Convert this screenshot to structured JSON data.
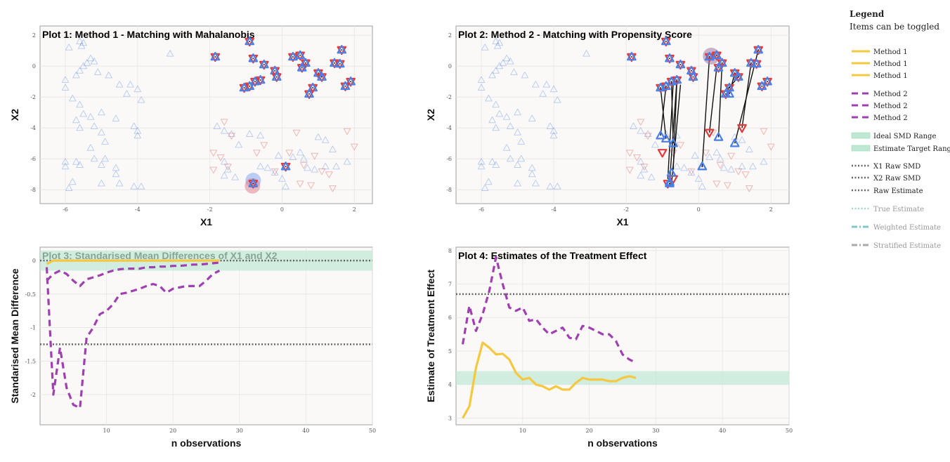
{
  "legend": {
    "title": "Legend",
    "subtitle": "Items can be toggled",
    "items": [
      {
        "label": "Method 1",
        "color": "#f5c842",
        "dash": "solid",
        "group": 0
      },
      {
        "label": "Method 1",
        "color": "#f5c842",
        "dash": "solid",
        "group": 0
      },
      {
        "label": "Method 1",
        "color": "#f5c842",
        "dash": "solid",
        "group": 0
      },
      {
        "label": "Method 2",
        "color": "#a040b0",
        "dash": "dashed",
        "group": 1
      },
      {
        "label": "Method 2",
        "color": "#a040b0",
        "dash": "dashed",
        "group": 1
      },
      {
        "label": "Method 2",
        "color": "#a040b0",
        "dash": "dashed",
        "group": 1
      },
      {
        "label": "Ideal SMD Range",
        "color": "#bfe8d4",
        "dash": "band",
        "group": 2
      },
      {
        "label": "Estimate Target Range",
        "color": "#bfe8d4",
        "dash": "band",
        "group": 2
      },
      {
        "label": "X1 Raw SMD",
        "color": "#666666",
        "dash": "dotted",
        "group": 3
      },
      {
        "label": "X2 Raw SMD",
        "color": "#666666",
        "dash": "dotted",
        "group": 3
      },
      {
        "label": "Raw Estimate",
        "color": "#666666",
        "dash": "dotted",
        "group": 3
      },
      {
        "label": "True Estimate",
        "color": "#9fd9cf",
        "dash": "dotted",
        "group": 4,
        "faded": true
      },
      {
        "label": "Weighted Estimate",
        "color": "#7ec8cc",
        "dash": "dashdot",
        "group": 5,
        "faded": true
      },
      {
        "label": "Stratified Estimate",
        "color": "#aaaaaa",
        "dash": "dashdot",
        "group": 6,
        "faded": true
      }
    ]
  },
  "chart_data": [
    {
      "id": "plot1",
      "type": "scatter",
      "title": "Plot 1: Method 1 - Matching with Mahalanobis",
      "xlabel": "X1",
      "ylabel": "X2",
      "xlim": [
        -6.7,
        2.5
      ],
      "ylim": [
        -8.9,
        2.6
      ],
      "xticks": [
        -6,
        -4,
        -2,
        0,
        2
      ],
      "yticks": [
        -8,
        -6,
        -4,
        -2,
        0,
        2
      ],
      "control_color": "#4a7fe8",
      "treated_color": "#e03a3a",
      "controls": [
        [
          -5.6,
          1.6
        ],
        [
          -5.5,
          1.5
        ],
        [
          -5.55,
          1.3
        ],
        [
          -5.3,
          0.5
        ],
        [
          -5.4,
          0.2
        ],
        [
          -5.5,
          0.0
        ],
        [
          -5.6,
          -0.3
        ],
        [
          -5.7,
          -0.6
        ],
        [
          -5.2,
          0.3
        ],
        [
          -5.1,
          -0.4
        ],
        [
          -4.8,
          -0.6
        ],
        [
          -4.5,
          -1.2
        ],
        [
          -4.3,
          -1.8
        ],
        [
          -4.2,
          -1.2
        ],
        [
          -4.0,
          -1.5
        ],
        [
          -3.9,
          -2.2
        ],
        [
          -3.1,
          0.8
        ],
        [
          -5.9,
          1.2
        ],
        [
          -6.0,
          -0.9
        ],
        [
          -6.0,
          -1.4
        ],
        [
          -5.8,
          -2.1
        ],
        [
          -5.6,
          -2.5
        ],
        [
          -5.5,
          -3.1
        ],
        [
          -5.7,
          -3.5
        ],
        [
          -5.3,
          -3.3
        ],
        [
          -5.0,
          -3.0
        ],
        [
          -4.6,
          -3.4
        ],
        [
          -4.1,
          -3.9
        ],
        [
          -4.0,
          -4.2
        ],
        [
          -5.6,
          -4.0
        ],
        [
          -5.2,
          -3.9
        ],
        [
          -5.0,
          -4.3
        ],
        [
          -4.9,
          -4.9
        ],
        [
          -5.3,
          -5.3
        ],
        [
          -5.2,
          -6.0
        ],
        [
          -5.0,
          -6.4
        ],
        [
          -4.9,
          -6.0
        ],
        [
          -6.0,
          -6.2
        ],
        [
          -6.0,
          -6.5
        ],
        [
          -5.7,
          -6.2
        ],
        [
          -5.6,
          -6.4
        ],
        [
          -4.6,
          -6.6
        ],
        [
          -4.6,
          -7.0
        ],
        [
          -5.0,
          -7.6
        ],
        [
          -5.8,
          -7.5
        ],
        [
          -5.9,
          -7.9
        ],
        [
          -4.5,
          -7.6
        ],
        [
          -4.1,
          -7.8
        ],
        [
          -3.9,
          -7.8
        ],
        [
          -4.0,
          -4.5
        ],
        [
          -1.8,
          -3.9
        ],
        [
          -1.6,
          -4.2
        ],
        [
          -1.4,
          -4.4
        ],
        [
          -0.9,
          -4.4
        ],
        [
          -0.6,
          -4.5
        ],
        [
          -1.2,
          -5.1
        ],
        [
          -1.6,
          -6.2
        ],
        [
          -1.5,
          -6.7
        ],
        [
          -1.6,
          -7.1
        ],
        [
          -1.3,
          -7.2
        ],
        [
          -0.6,
          -6.5
        ],
        [
          -0.4,
          -6.6
        ],
        [
          -0.2,
          -6.9
        ],
        [
          0.0,
          -7.3
        ],
        [
          0.1,
          -7.8
        ],
        [
          -0.1,
          -5.8
        ],
        [
          0.3,
          -5.9
        ],
        [
          0.7,
          -6.6
        ],
        [
          0.9,
          -6.7
        ],
        [
          1.2,
          -6.5
        ],
        [
          1.5,
          -6.5
        ],
        [
          1.8,
          -6.2
        ],
        [
          0.6,
          -6.0
        ],
        [
          0.5,
          -5.6
        ],
        [
          1.0,
          -4.6
        ],
        [
          1.2,
          -4.8
        ],
        [
          1.4,
          -5.4
        ]
      ],
      "treated_faint": [
        [
          -1.9,
          -5.6
        ],
        [
          -1.7,
          -5.9
        ],
        [
          -1.9,
          -6.7
        ],
        [
          -1.5,
          -6.5
        ],
        [
          -1.4,
          -4.5
        ],
        [
          -0.7,
          -5.6
        ],
        [
          -0.5,
          -5.1
        ],
        [
          0.2,
          -5.6
        ],
        [
          -0.2,
          -6.8
        ],
        [
          0.6,
          -6.4
        ],
        [
          0.9,
          -5.8
        ],
        [
          1.1,
          -6.8
        ],
        [
          1.3,
          -7.0
        ],
        [
          0.8,
          -7.7
        ],
        [
          0.5,
          -7.6
        ],
        [
          1.4,
          -7.9
        ],
        [
          1.8,
          -4.2
        ],
        [
          2.0,
          -5.2
        ],
        [
          0.4,
          -4.3
        ],
        [
          -1.6,
          -3.6
        ]
      ],
      "matched": [
        [
          -0.9,
          1.6
        ],
        [
          -1.85,
          0.6
        ],
        [
          -0.8,
          0.5
        ],
        [
          -0.5,
          0.1
        ],
        [
          -0.2,
          -0.3
        ],
        [
          -0.15,
          -0.7
        ],
        [
          -0.6,
          -0.9
        ],
        [
          -0.9,
          -1.3
        ],
        [
          -1.05,
          -1.4
        ],
        [
          -0.75,
          -1.0
        ],
        [
          0.3,
          0.6
        ],
        [
          0.5,
          0.7
        ],
        [
          0.55,
          -0.1
        ],
        [
          0.65,
          0.2
        ],
        [
          1.0,
          -0.45
        ],
        [
          1.1,
          -0.7
        ],
        [
          0.85,
          -1.4
        ],
        [
          0.75,
          -1.8
        ],
        [
          1.45,
          0.2
        ],
        [
          1.6,
          0.15
        ],
        [
          1.65,
          1.05
        ],
        [
          1.9,
          -1.0
        ],
        [
          1.75,
          -1.3
        ],
        [
          0.1,
          -6.5
        ],
        [
          -0.8,
          -7.6
        ]
      ],
      "highlight": [
        [
          -0.8,
          -7.4
        ],
        [
          -0.82,
          -7.75
        ]
      ]
    },
    {
      "id": "plot2",
      "type": "scatter",
      "title": "Plot 2: Method 2 - Matching with Propensity Score",
      "xlabel": "X1",
      "ylabel": "X2",
      "xlim": [
        -6.7,
        2.5
      ],
      "ylim": [
        -8.9,
        2.6
      ],
      "xticks": [
        -6,
        -4,
        -2,
        0,
        2
      ],
      "yticks": [
        -8,
        -6,
        -4,
        -2,
        0,
        2
      ],
      "treated_matched": [
        [
          -0.9,
          1.6
        ],
        [
          -1.85,
          0.6
        ],
        [
          -0.8,
          0.5
        ],
        [
          -0.5,
          0.1
        ],
        [
          -0.2,
          -0.3
        ],
        [
          -0.15,
          -0.7
        ],
        [
          -0.6,
          -0.9
        ],
        [
          -0.9,
          -1.3
        ],
        [
          -1.05,
          -1.4
        ],
        [
          -0.75,
          -1.0
        ],
        [
          0.3,
          0.6
        ],
        [
          0.5,
          0.7
        ],
        [
          0.55,
          -0.1
        ],
        [
          0.65,
          0.2
        ],
        [
          1.0,
          -0.45
        ],
        [
          1.1,
          -0.7
        ],
        [
          0.85,
          -1.4
        ],
        [
          0.75,
          -1.8
        ],
        [
          1.45,
          0.2
        ],
        [
          1.6,
          0.15
        ],
        [
          1.65,
          1.05
        ],
        [
          1.9,
          -1.0
        ],
        [
          1.75,
          -1.3
        ],
        [
          -1.0,
          -5.6
        ],
        [
          -0.85,
          -7.6
        ],
        [
          -0.7,
          -7.3
        ],
        [
          0.3,
          -4.3
        ],
        [
          1.2,
          -4.0
        ]
      ],
      "pairs": [
        [
          [
            -0.9,
            -1.3
          ],
          [
            -1.05,
            -4.5
          ]
        ],
        [
          [
            -1.05,
            -1.4
          ],
          [
            -0.9,
            -4.7
          ]
        ],
        [
          [
            -0.75,
            -1.0
          ],
          [
            -0.7,
            -5.0
          ]
        ],
        [
          [
            -0.6,
            -0.9
          ],
          [
            -0.8,
            -7.5
          ]
        ],
        [
          [
            -0.6,
            -1.0
          ],
          [
            -0.7,
            -6.7
          ]
        ],
        [
          [
            -0.5,
            -1.2
          ],
          [
            -0.75,
            -7.7
          ]
        ],
        [
          [
            -0.7,
            -1.1
          ],
          [
            -0.85,
            -7.3
          ]
        ],
        [
          [
            0.5,
            -0.1
          ],
          [
            0.3,
            -4.3
          ]
        ],
        [
          [
            0.65,
            0.2
          ],
          [
            0.55,
            -4.6
          ]
        ],
        [
          [
            0.3,
            0.6
          ],
          [
            0.1,
            -6.5
          ]
        ],
        [
          [
            1.0,
            -0.45
          ],
          [
            0.85,
            -1.8
          ]
        ],
        [
          [
            1.1,
            -0.7
          ],
          [
            0.8,
            -1.5
          ]
        ],
        [
          [
            1.65,
            1.05
          ],
          [
            1.0,
            -5.0
          ]
        ],
        [
          [
            1.45,
            0.2
          ],
          [
            1.2,
            -4.0
          ]
        ]
      ],
      "controls_matched": [
        [
          -1.05,
          -4.5
        ],
        [
          -0.9,
          -4.7
        ],
        [
          -0.7,
          -5.0
        ],
        [
          -0.75,
          -6.9
        ],
        [
          -0.8,
          -7.5
        ],
        [
          0.1,
          -6.5
        ],
        [
          0.55,
          -4.6
        ],
        [
          1.0,
          -5.0
        ],
        [
          0.85,
          -1.8
        ]
      ],
      "highlight": [
        [
          0.35,
          0.65
        ]
      ]
    },
    {
      "id": "plot3",
      "type": "line",
      "title": "Plot 3: Standarised Mean Differences of X1 and X2",
      "xlabel": "n observations",
      "ylabel": "Standarised Mean Difference",
      "xlim": [
        0,
        50
      ],
      "ylim": [
        -2.45,
        0.2
      ],
      "xticks": [
        10,
        20,
        30,
        40,
        50
      ],
      "yticks": [
        0,
        -0.5,
        -1,
        -1.5,
        -2
      ],
      "ideal_band": [
        -0.15,
        0.15
      ],
      "raw_x1": 0.0,
      "raw_x2": -1.25,
      "series": [
        {
          "name": "Method 1",
          "color": "#f5c842",
          "dash": "solid",
          "x": [
            1,
            2,
            3,
            4,
            5,
            6,
            7,
            8,
            9,
            10,
            11,
            12,
            13,
            14,
            15,
            16,
            17,
            18,
            19,
            20,
            21,
            22,
            23,
            24,
            25,
            26,
            27
          ],
          "values": [
            -0.05,
            0,
            0,
            0,
            0,
            0,
            0,
            0,
            0,
            0,
            0,
            0,
            0,
            0,
            0,
            0,
            0,
            0,
            0,
            0,
            0,
            0,
            0,
            0,
            0,
            0,
            0
          ]
        },
        {
          "name": "Method 2",
          "color": "#a040b0",
          "dash": "dashed",
          "x": [
            1,
            2,
            3,
            4,
            5,
            6,
            7,
            8,
            9,
            10,
            11,
            12,
            13,
            14,
            15,
            16,
            17,
            18,
            19,
            20,
            21,
            22,
            23,
            24,
            25,
            26,
            27
          ],
          "values": [
            -0.3,
            -0.2,
            -0.15,
            -0.2,
            -0.3,
            -0.38,
            -0.28,
            -0.25,
            -0.22,
            -0.18,
            -0.15,
            -0.13,
            -0.12,
            -0.12,
            -0.12,
            -0.1,
            -0.1,
            -0.09,
            -0.09,
            -0.08,
            -0.08,
            -0.07,
            -0.06,
            -0.06,
            -0.05,
            -0.04,
            -0.03
          ]
        },
        {
          "name": "Method 2",
          "color": "#a040b0",
          "dash": "dashed",
          "x": [
            1,
            2,
            3,
            4,
            5,
            6,
            7,
            8,
            9,
            10,
            11,
            12,
            13,
            14,
            15,
            16,
            17,
            18,
            19,
            20,
            21,
            22,
            23,
            24,
            25,
            26,
            27
          ],
          "values": [
            -0.1,
            -2.0,
            -1.3,
            -1.9,
            -2.15,
            -2.2,
            -1.15,
            -1.0,
            -0.8,
            -0.75,
            -0.65,
            -0.5,
            -0.48,
            -0.45,
            -0.42,
            -0.38,
            -0.35,
            -0.38,
            -0.48,
            -0.42,
            -0.4,
            -0.38,
            -0.38,
            -0.38,
            -0.3,
            -0.2,
            -0.15
          ]
        }
      ]
    },
    {
      "id": "plot4",
      "type": "line",
      "title": "Plot 4: Estimates of the Treatment Effect",
      "xlabel": "n observations",
      "ylabel": "Estimate of Treatment Effect",
      "xlim": [
        0,
        50
      ],
      "ylim": [
        2.8,
        8.1
      ],
      "xticks": [
        10,
        20,
        30,
        40,
        50
      ],
      "yticks": [
        3,
        4,
        5,
        6,
        7,
        8
      ],
      "target_band": [
        4.0,
        4.4
      ],
      "raw_estimate": 6.7,
      "series": [
        {
          "name": "Method 1",
          "color": "#f5c842",
          "dash": "solid",
          "x": [
            1,
            2,
            3,
            4,
            5,
            6,
            7,
            8,
            9,
            10,
            11,
            12,
            13,
            14,
            15,
            16,
            17,
            18,
            19,
            20,
            21,
            22,
            23,
            24,
            25,
            26,
            27
          ],
          "values": [
            3.0,
            3.35,
            4.5,
            5.25,
            5.1,
            4.9,
            4.92,
            4.75,
            4.35,
            4.15,
            4.2,
            4.0,
            3.95,
            3.85,
            3.95,
            3.85,
            3.85,
            4.05,
            4.2,
            4.15,
            4.15,
            4.15,
            4.1,
            4.1,
            4.2,
            4.25,
            4.2
          ]
        },
        {
          "name": "Method 2",
          "color": "#a040b0",
          "dash": "dashed",
          "x": [
            1,
            2,
            3,
            4,
            5,
            6,
            7,
            8,
            9,
            10,
            11,
            12,
            13,
            14,
            15,
            16,
            17,
            18,
            19,
            20,
            21,
            22,
            23,
            24,
            25,
            26,
            27
          ],
          "values": [
            5.2,
            6.35,
            5.6,
            6.1,
            6.8,
            7.8,
            7.0,
            6.3,
            6.2,
            6.3,
            5.9,
            5.95,
            5.7,
            5.5,
            5.6,
            5.7,
            5.4,
            5.35,
            5.75,
            5.7,
            5.6,
            5.5,
            5.5,
            5.3,
            4.9,
            4.75,
            4.65
          ]
        }
      ]
    }
  ]
}
